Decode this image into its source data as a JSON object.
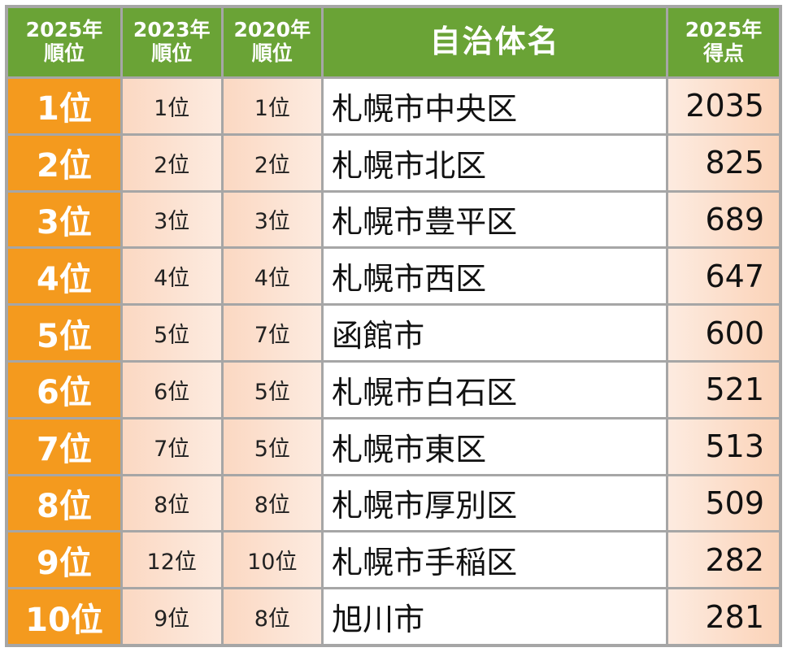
{
  "headers": {
    "rank_2025_line1": "2025年",
    "rank_2025_line2": "順位",
    "rank_2023_line1": "2023年",
    "rank_2023_line2": "順位",
    "rank_2020_line1": "2020年",
    "rank_2020_line2": "順位",
    "municipality": "自治体名",
    "score_2025_line1": "2025年",
    "score_2025_line2": "得点"
  },
  "rows": [
    {
      "rank_2025": "1位",
      "rank_2023": "1位",
      "rank_2020": "1位",
      "name": "札幌市中央区",
      "score": "2035"
    },
    {
      "rank_2025": "2位",
      "rank_2023": "2位",
      "rank_2020": "2位",
      "name": "札幌市北区",
      "score": "825"
    },
    {
      "rank_2025": "3位",
      "rank_2023": "3位",
      "rank_2020": "3位",
      "name": "札幌市豊平区",
      "score": "689"
    },
    {
      "rank_2025": "4位",
      "rank_2023": "4位",
      "rank_2020": "4位",
      "name": "札幌市西区",
      "score": "647"
    },
    {
      "rank_2025": "5位",
      "rank_2023": "5位",
      "rank_2020": "7位",
      "name": "函館市",
      "score": "600"
    },
    {
      "rank_2025": "6位",
      "rank_2023": "6位",
      "rank_2020": "5位",
      "name": "札幌市白石区",
      "score": "521"
    },
    {
      "rank_2025": "7位",
      "rank_2023": "7位",
      "rank_2020": "5位",
      "name": "札幌市東区",
      "score": "513"
    },
    {
      "rank_2025": "8位",
      "rank_2023": "8位",
      "rank_2020": "8位",
      "name": "札幌市厚別区",
      "score": "509"
    },
    {
      "rank_2025": "9位",
      "rank_2023": "12位",
      "rank_2020": "10位",
      "name": "札幌市手稲区",
      "score": "282"
    },
    {
      "rank_2025": "10位",
      "rank_2023": "9位",
      "rank_2020": "8位",
      "name": "旭川市",
      "score": "281"
    }
  ],
  "colors": {
    "header_green": "#6aa336",
    "rank_orange": "#f49a1e",
    "peach": "#fbd8c2",
    "grid_gray": "#a6a6a6"
  }
}
